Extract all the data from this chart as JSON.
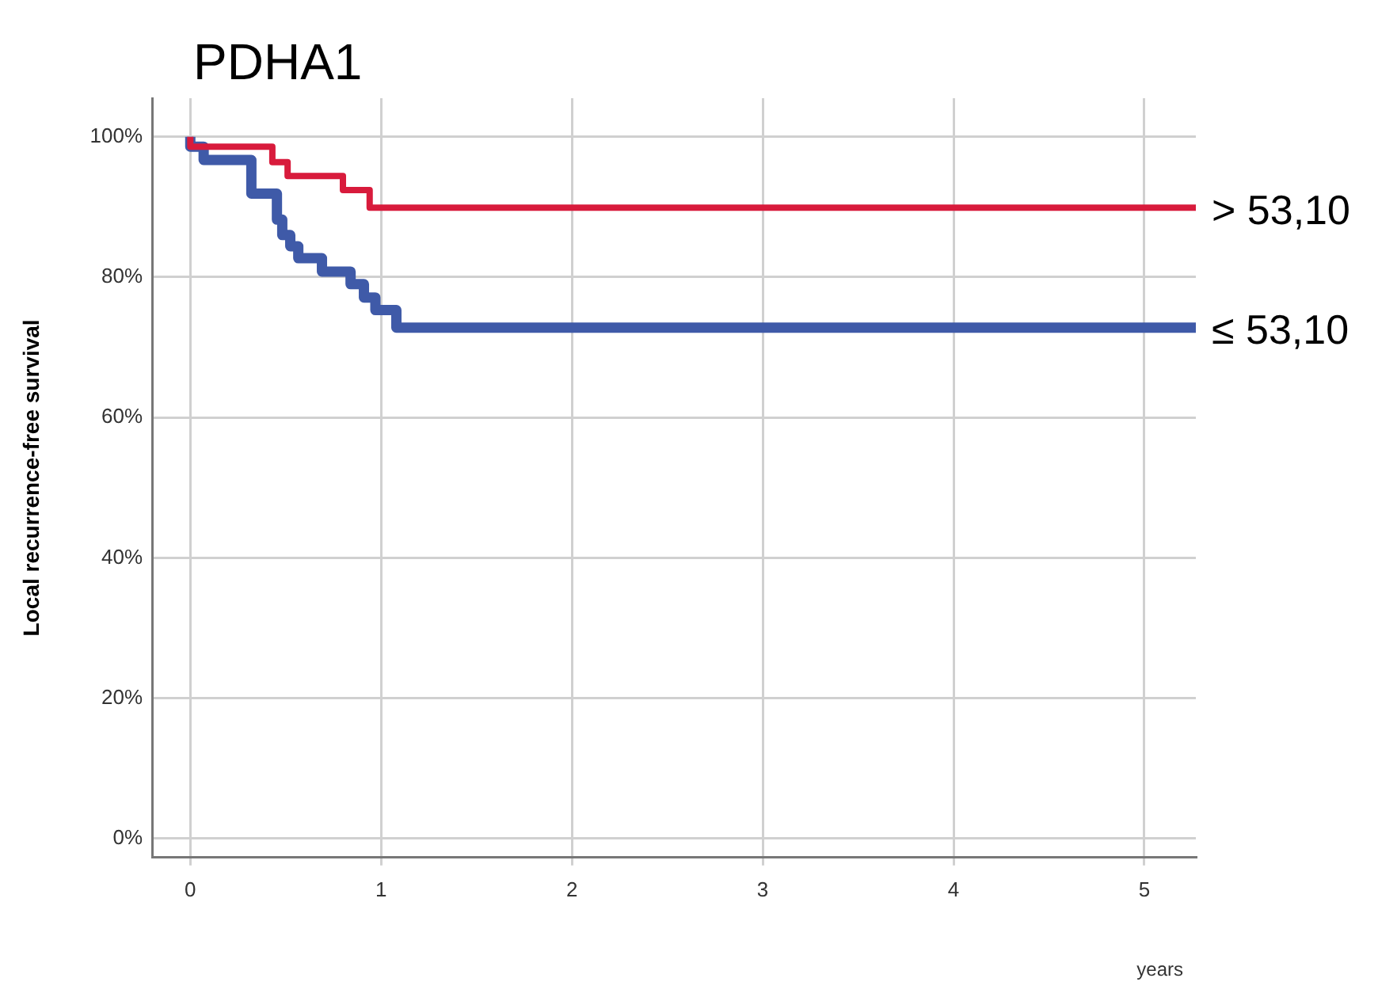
{
  "chart_data": {
    "type": "step",
    "title": "PDHA1",
    "xlabel": "years",
    "ylabel": "Local recurrence-free survival",
    "series": [
      {
        "name": "> 53,10",
        "color": "#d81b3c",
        "x": [
          0,
          0.43,
          0.51,
          0.8,
          0.94,
          2.13,
          5.27
        ],
        "values": [
          100,
          98.6,
          96.4,
          94.4,
          92.4,
          89.9,
          89.9
        ]
      },
      {
        "name": "≤ 53,10",
        "color": "#3f5aa8",
        "x": [
          0,
          0.07,
          0.32,
          0.454,
          0.482,
          0.524,
          0.566,
          0.69,
          0.84,
          0.91,
          0.97,
          1.08,
          1.76,
          5.27
        ],
        "values": [
          100,
          98.6,
          96.7,
          91.9,
          88.2,
          86.0,
          84.4,
          82.7,
          80.8,
          79.0,
          77.1,
          75.3,
          72.8,
          72.8
        ]
      }
    ],
    "xlim": [
      -0.2,
      5.27
    ],
    "xticks": [
      0,
      1,
      2,
      3,
      4,
      5
    ],
    "ylim": [
      -2.7,
      105.5
    ],
    "yticks": [
      {
        "value": 0,
        "label": "0%"
      },
      {
        "value": 20,
        "label": "20%"
      },
      {
        "value": 40,
        "label": "40%"
      },
      {
        "value": 60,
        "label": "60%"
      },
      {
        "value": 80,
        "label": "80%"
      },
      {
        "value": 100,
        "label": "100%"
      }
    ],
    "grid": true,
    "legend": false,
    "line_style": "solid",
    "marker": "none"
  }
}
